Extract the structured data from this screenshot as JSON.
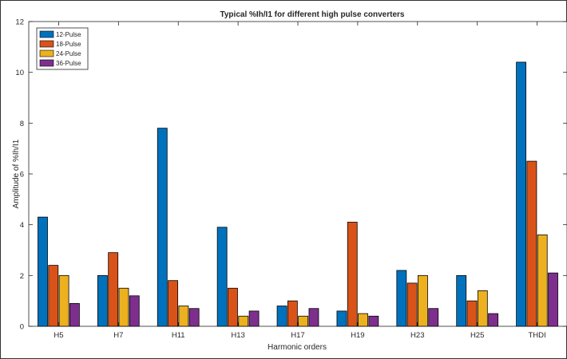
{
  "chart_data": {
    "type": "bar",
    "title": "Typical %Ih/I1 for different high pulse converters",
    "xlabel": "Harmonic orders",
    "ylabel": "Amplitude of %Ih/I1",
    "ylim": [
      0,
      12
    ],
    "yticks": [
      0,
      2,
      4,
      6,
      8,
      10,
      12
    ],
    "grid": false,
    "legend_position": "top-left",
    "categories": [
      "H5",
      "H7",
      "H11",
      "H13",
      "H17",
      "H19",
      "H23",
      "H25",
      "THDI"
    ],
    "series": [
      {
        "name": "12-Pulse",
        "color": "#0072BD",
        "values": [
          4.3,
          2.0,
          7.8,
          3.9,
          0.8,
          0.6,
          2.2,
          2.0,
          10.4
        ]
      },
      {
        "name": "18-Pulse",
        "color": "#D95319",
        "values": [
          2.4,
          2.9,
          1.8,
          1.5,
          1.0,
          4.1,
          1.7,
          1.0,
          6.5
        ]
      },
      {
        "name": "24-Pulse",
        "color": "#EDB120",
        "values": [
          2.0,
          1.5,
          0.8,
          0.4,
          0.4,
          0.5,
          2.0,
          1.4,
          3.6
        ]
      },
      {
        "name": "36-Pulse",
        "color": "#7E2F8E",
        "values": [
          0.9,
          1.2,
          0.7,
          0.6,
          0.7,
          0.4,
          0.7,
          0.5,
          2.1
        ]
      }
    ]
  }
}
